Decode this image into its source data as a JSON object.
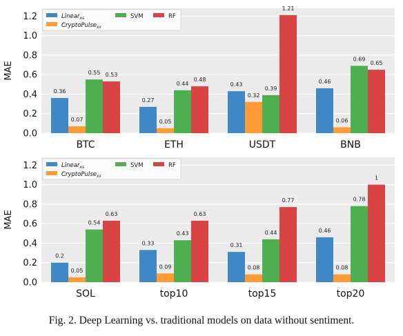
{
  "caption": "Fig. 2.  Deep Learning vs. traditional models on data without sentiment.",
  "colors": {
    "linear": "#3f88c5",
    "cryptopulse": "#ff9a35",
    "svm": "#4fae4f",
    "rf": "#d94343",
    "plot_bg": "#ebebeb",
    "grid": "#ffffff"
  },
  "chart_data": [
    {
      "type": "bar",
      "categories": [
        "BTC",
        "ETH",
        "USDT",
        "BNB"
      ],
      "series": [
        {
          "name": "Linear_xs",
          "values": [
            0.36,
            0.27,
            0.43,
            0.46
          ]
        },
        {
          "name": "CryptoPulse_xs",
          "values": [
            0.07,
            0.05,
            0.32,
            0.06
          ]
        },
        {
          "name": "SVM",
          "values": [
            0.55,
            0.44,
            0.39,
            0.69
          ]
        },
        {
          "name": "RF",
          "values": [
            0.53,
            0.48,
            1.21,
            0.65
          ]
        }
      ],
      "data_labels": [
        [
          "0.36",
          "0.27",
          "0.43",
          "0.46"
        ],
        [
          "0.07",
          "0.05",
          "0.32",
          "0.06"
        ],
        [
          "0.55",
          "0.44",
          "0.39",
          "0.69"
        ],
        [
          "0.53",
          "0.48",
          "1.21",
          "0.65"
        ]
      ],
      "ylabel": "MAE",
      "yticks": [
        "0.0",
        "0.2",
        "0.4",
        "0.6",
        "0.8",
        "1.0",
        "1.2"
      ],
      "ylim": [
        0,
        1.28
      ],
      "grid": "horizontal",
      "legend": "top-left"
    },
    {
      "type": "bar",
      "categories": [
        "SOL",
        "top10",
        "top15",
        "top20"
      ],
      "series": [
        {
          "name": "Linear_xs",
          "values": [
            0.2,
            0.33,
            0.31,
            0.46
          ]
        },
        {
          "name": "CryptoPulse_xs",
          "values": [
            0.05,
            0.09,
            0.08,
            0.08
          ]
        },
        {
          "name": "SVM",
          "values": [
            0.54,
            0.43,
            0.44,
            0.78
          ]
        },
        {
          "name": "RF",
          "values": [
            0.63,
            0.63,
            0.77,
            1.0
          ]
        }
      ],
      "data_labels": [
        [
          "0.2",
          "0.33",
          "0.31",
          "0.46"
        ],
        [
          "0.05",
          "0.09",
          "0.08",
          "0.08"
        ],
        [
          "0.54",
          "0.43",
          "0.44",
          "0.78"
        ],
        [
          "0.63",
          "0.63",
          "0.77",
          "1"
        ]
      ],
      "ylabel": "MAE",
      "yticks": [
        "0.0",
        "0.2",
        "0.4",
        "0.6",
        "0.8",
        "1.0",
        "1.2"
      ],
      "ylim": [
        0,
        1.28
      ],
      "grid": "horizontal",
      "legend": "top-left"
    }
  ],
  "legend": {
    "linear": {
      "base": "Linear",
      "sub": "xs"
    },
    "cryptopulse": {
      "base": "CryptoPulse",
      "sub": "xs"
    },
    "svm": "SVM",
    "rf": "RF"
  }
}
